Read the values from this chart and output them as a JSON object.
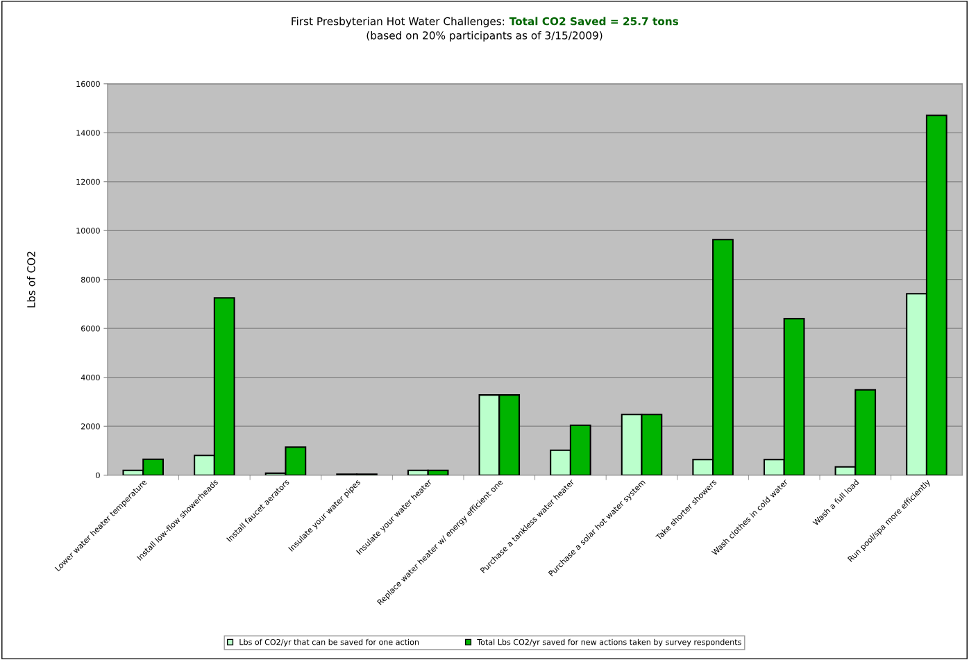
{
  "chart_data": {
    "type": "bar",
    "title": "First Presbyterian Hot Water Challenges: Total CO2 Saved = 25.7 tons",
    "subtitle": "(based on 20% participants as of 3/15/2009)",
    "ylabel": "Lbs of CO2",
    "categories": [
      "Lower water heater temperature",
      "Install low-flow showerheads",
      "Install faucet aerators",
      "Insulate your water pipes",
      "Insulate your water heater",
      "Replace water heater w/ energy efficient one",
      "Purchase a tankless water heater",
      "Purchase a solar hot water system",
      "Take shorter showers",
      "Wash clothes in cold water",
      "Wash a full load",
      "Run pool/spa more efficiently"
    ],
    "series": [
      {
        "name": "Lbs of CO2/yr that can be saved for one action",
        "color": "#bbffcc",
        "values": [
          200,
          810,
          80,
          40,
          200,
          3280,
          1020,
          2480,
          640,
          640,
          340,
          7420
        ]
      },
      {
        "name": "Total Lbs CO2/yr saved for new actions taken by survey respondents",
        "color": "#00b400",
        "values": [
          650,
          7250,
          1150,
          40,
          200,
          3280,
          2040,
          2480,
          9630,
          6400,
          3490,
          14710
        ]
      }
    ],
    "ylim": [
      0,
      16000
    ],
    "yticks": [
      0,
      2000,
      4000,
      6000,
      8000,
      10000,
      12000,
      14000,
      16000
    ],
    "grid": "y",
    "legend": "bottom"
  }
}
